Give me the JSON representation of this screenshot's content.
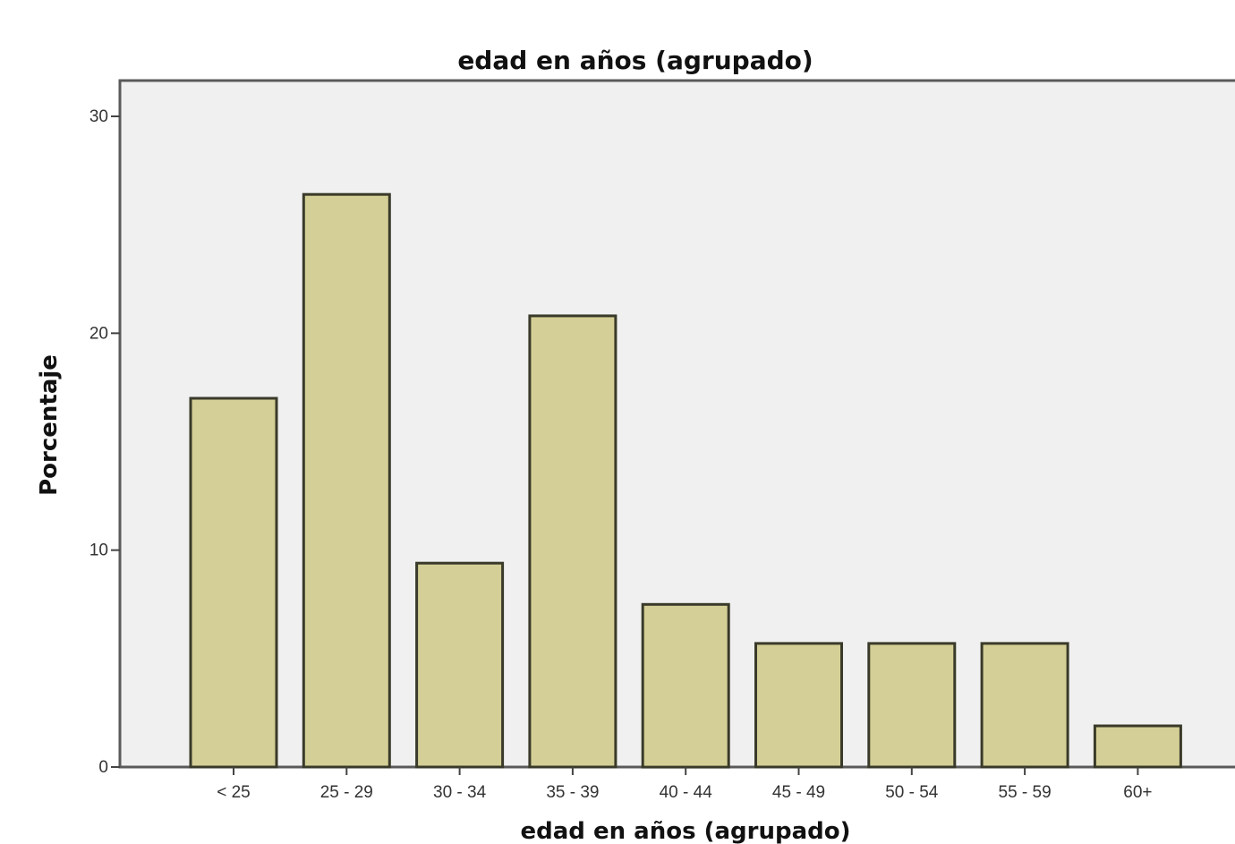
{
  "chart_data": {
    "type": "bar",
    "title": "edad en años (agrupado)",
    "xlabel": "edad en años (agrupado)",
    "ylabel": "Porcentaje",
    "categories": [
      "< 25",
      "25 - 29",
      "30 - 34",
      "35 - 39",
      "40 - 44",
      "45 - 49",
      "50 - 54",
      "55 - 59",
      "60+"
    ],
    "values": [
      17.0,
      26.4,
      9.4,
      20.8,
      7.5,
      5.7,
      5.7,
      5.7,
      1.9
    ],
    "ylim": [
      0,
      30
    ],
    "yticks": [
      "0",
      "10",
      "20",
      "30"
    ],
    "grid": false,
    "colors": {
      "bar_fill": "#d4cf96",
      "bar_stroke": "#3a3a2a",
      "plot_background": "#f0f0f0",
      "plot_border": "#5a5a5a"
    }
  }
}
